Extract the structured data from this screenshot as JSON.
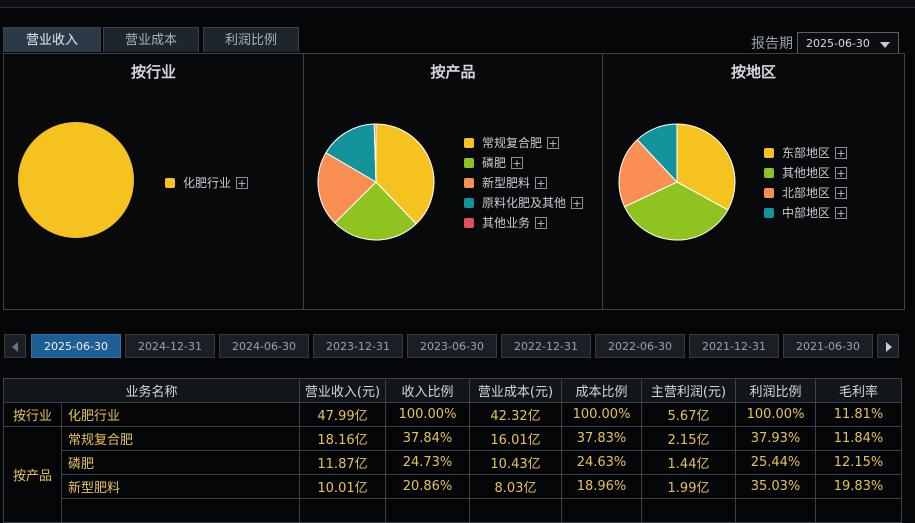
{
  "tabs": [
    {
      "label": "营业收入",
      "active": true
    },
    {
      "label": "营业成本",
      "active": false
    },
    {
      "label": "利润比例",
      "active": false
    }
  ],
  "report": {
    "label": "报告期",
    "selected": "2025-06-30"
  },
  "panels": [
    {
      "title": "按行业",
      "slices": [
        {
          "name": "化肥行业",
          "value": 100.0,
          "color": "#f5c21f"
        }
      ]
    },
    {
      "title": "按产品",
      "slices": [
        {
          "name": "常规复合肥",
          "value": 37.84,
          "color": "#f5c21f"
        },
        {
          "name": "磷肥",
          "value": 24.73,
          "color": "#8fc31f"
        },
        {
          "name": "新型肥料",
          "value": 20.86,
          "color": "#f98f52"
        },
        {
          "name": "原料化肥及其他",
          "value": 16.07,
          "color": "#13939b"
        },
        {
          "name": "其他业务",
          "value": 0.5,
          "color": "#e0505a"
        }
      ]
    },
    {
      "title": "按地区",
      "slices": [
        {
          "name": "东部地区",
          "value": 33.0,
          "color": "#f5c21f"
        },
        {
          "name": "其他地区",
          "value": 35.0,
          "color": "#8fc31f"
        },
        {
          "name": "北部地区",
          "value": 20.0,
          "color": "#f98f52"
        },
        {
          "name": "中部地区",
          "value": 12.0,
          "color": "#13939b"
        }
      ]
    }
  ],
  "periods": [
    "2025-06-30",
    "2024-12-31",
    "2024-06-30",
    "2023-12-31",
    "2023-06-30",
    "2022-12-31",
    "2022-06-30",
    "2021-12-31",
    "2021-06-30"
  ],
  "active_period": "2025-06-30",
  "table": {
    "headers": [
      "业务名称",
      "营业收入(元)",
      "收入比例",
      "营业成本(元)",
      "成本比例",
      "主营利润(元)",
      "利润比例",
      "毛利率"
    ],
    "groups": [
      "按行业",
      "按产品"
    ],
    "rows": [
      {
        "name": "化肥行业",
        "revenue": "47.99亿",
        "rev_ratio": "100.00%",
        "cost": "42.32亿",
        "cost_ratio": "100.00%",
        "profit": "5.67亿",
        "profit_ratio": "100.00%",
        "margin": "11.81%"
      },
      {
        "name": "常规复合肥",
        "revenue": "18.16亿",
        "rev_ratio": "37.84%",
        "cost": "16.01亿",
        "cost_ratio": "37.83%",
        "profit": "2.15亿",
        "profit_ratio": "37.93%",
        "margin": "11.84%"
      },
      {
        "name": "磷肥",
        "revenue": "11.87亿",
        "rev_ratio": "24.73%",
        "cost": "10.43亿",
        "cost_ratio": "24.63%",
        "profit": "1.44亿",
        "profit_ratio": "25.44%",
        "margin": "12.15%"
      },
      {
        "name": "新型肥料",
        "revenue": "10.01亿",
        "rev_ratio": "20.86%",
        "cost": "8.03亿",
        "cost_ratio": "18.96%",
        "profit": "1.99亿",
        "profit_ratio": "35.03%",
        "margin": "19.83%"
      }
    ]
  }
}
